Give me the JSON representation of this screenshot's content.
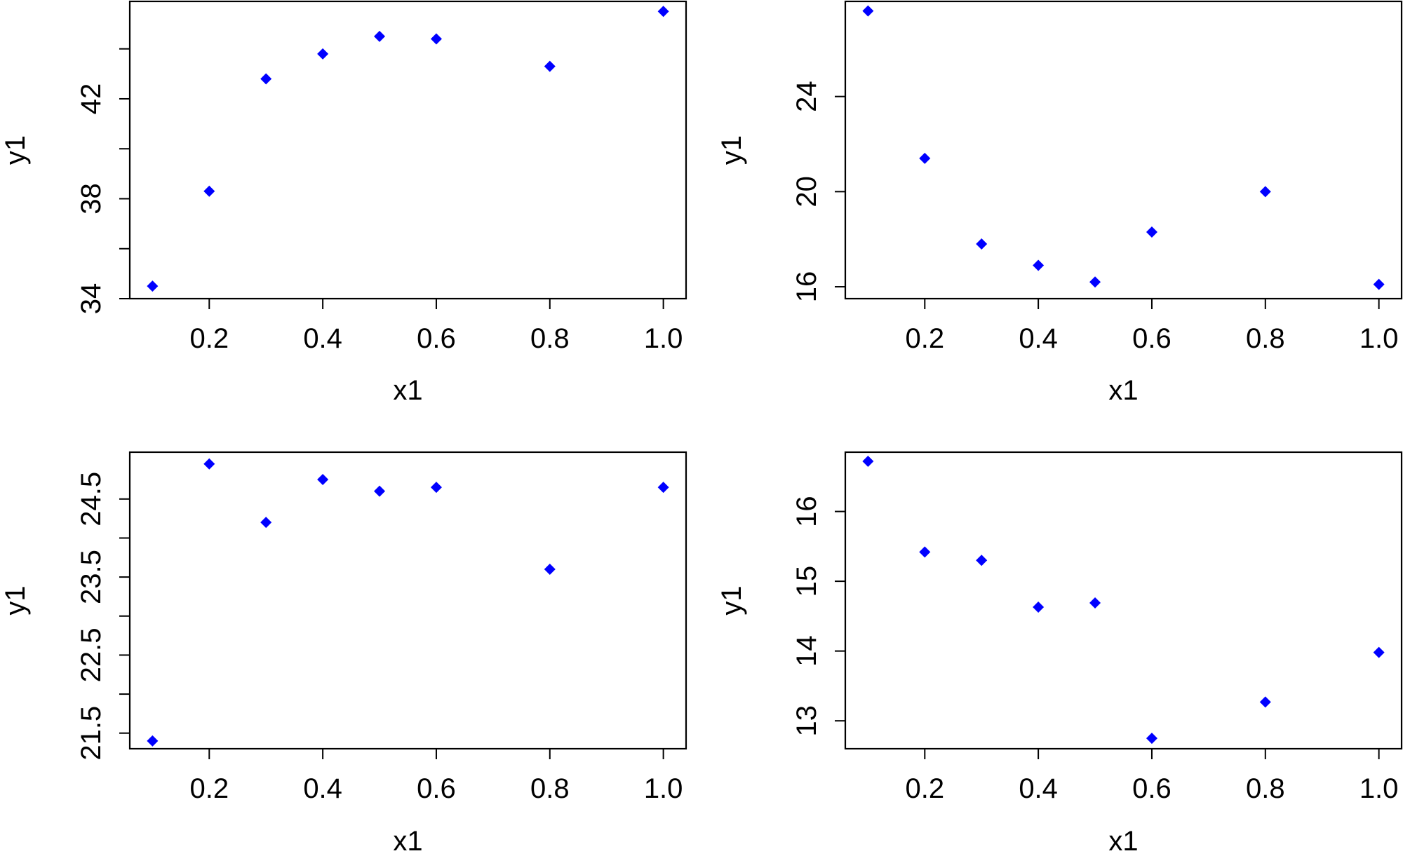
{
  "colors": {
    "point": "#0000ff",
    "axis": "#000000",
    "background": "#ffffff"
  },
  "chart_data": [
    {
      "type": "scatter",
      "xlabel": "x1",
      "ylabel": "y1",
      "xlim": [
        0.06,
        1.04
      ],
      "ylim": [
        34.0,
        45.9
      ],
      "x_ticks": [
        0.2,
        0.4,
        0.6,
        0.8,
        1.0
      ],
      "x_tick_labels": [
        "0.2",
        "0.4",
        "0.6",
        "0.8",
        "1.0"
      ],
      "y_ticks": [
        34,
        36,
        38,
        40,
        42,
        44
      ],
      "y_tick_labels": [
        "34",
        "",
        "38",
        "",
        "42",
        ""
      ],
      "marker": "diamond",
      "x": [
        0.1,
        0.2,
        0.3,
        0.4,
        0.5,
        0.6,
        0.8,
        1.0
      ],
      "y": [
        34.5,
        38.3,
        42.8,
        43.8,
        44.5,
        44.4,
        43.3,
        45.5
      ]
    },
    {
      "type": "scatter",
      "xlabel": "x1",
      "ylabel": "y1",
      "xlim": [
        0.06,
        1.04
      ],
      "ylim": [
        15.5,
        28.0
      ],
      "x_ticks": [
        0.2,
        0.4,
        0.6,
        0.8,
        1.0
      ],
      "x_tick_labels": [
        "0.2",
        "0.4",
        "0.6",
        "0.8",
        "1.0"
      ],
      "y_ticks": [
        16,
        20,
        24
      ],
      "y_tick_labels": [
        "16",
        "20",
        "24"
      ],
      "marker": "diamond",
      "x": [
        0.1,
        0.2,
        0.3,
        0.4,
        0.5,
        0.6,
        0.8,
        1.0
      ],
      "y": [
        27.6,
        21.4,
        17.8,
        16.9,
        16.2,
        18.3,
        20.0,
        16.1
      ]
    },
    {
      "type": "scatter",
      "xlabel": "x1",
      "ylabel": "y1",
      "xlim": [
        0.06,
        1.04
      ],
      "ylim": [
        21.3,
        25.1
      ],
      "x_ticks": [
        0.2,
        0.4,
        0.6,
        0.8,
        1.0
      ],
      "x_tick_labels": [
        "0.2",
        "0.4",
        "0.6",
        "0.8",
        "1.0"
      ],
      "y_ticks": [
        21.5,
        22.0,
        22.5,
        23.0,
        23.5,
        24.0,
        24.5
      ],
      "y_tick_labels": [
        "21.5",
        "",
        "22.5",
        "",
        "23.5",
        "",
        "24.5"
      ],
      "marker": "diamond",
      "x": [
        0.1,
        0.2,
        0.3,
        0.4,
        0.5,
        0.6,
        0.8,
        1.0
      ],
      "y": [
        21.4,
        24.95,
        24.2,
        24.75,
        24.6,
        24.65,
        23.6,
        24.65
      ]
    },
    {
      "type": "scatter",
      "xlabel": "x1",
      "ylabel": "y1",
      "xlim": [
        0.06,
        1.04
      ],
      "ylim": [
        12.6,
        16.85
      ],
      "x_ticks": [
        0.2,
        0.4,
        0.6,
        0.8,
        1.0
      ],
      "x_tick_labels": [
        "0.2",
        "0.4",
        "0.6",
        "0.8",
        "1.0"
      ],
      "y_ticks": [
        13,
        14,
        15,
        16
      ],
      "y_tick_labels": [
        "13",
        "14",
        "15",
        "16"
      ],
      "marker": "diamond",
      "x": [
        0.1,
        0.2,
        0.3,
        0.4,
        0.5,
        0.6,
        0.8,
        1.0
      ],
      "y": [
        16.72,
        15.42,
        15.3,
        14.63,
        14.69,
        12.75,
        13.27,
        13.98
      ]
    }
  ]
}
